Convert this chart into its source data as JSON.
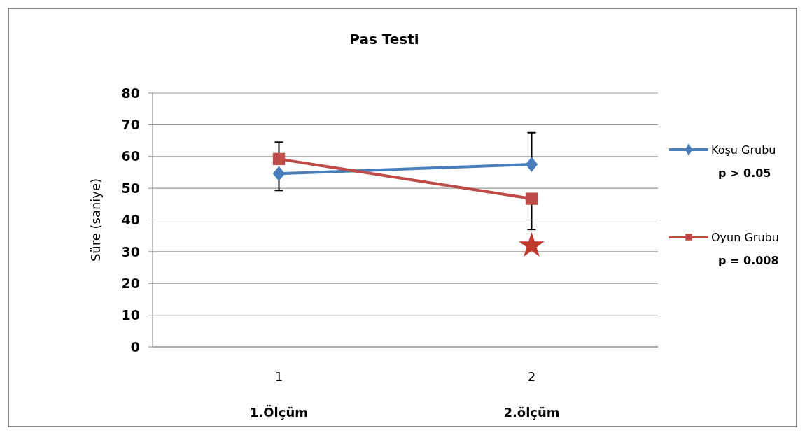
{
  "chart_data": {
    "type": "line",
    "title": "Pas Testi",
    "ylabel": "Süre (saniye)",
    "categories": [
      "1",
      "2"
    ],
    "series": [
      {
        "name": "Koşu Grubu",
        "color": "#4a7ebb",
        "marker": "diamond",
        "values": [
          54.6,
          57.5
        ],
        "errors": [
          [
            49.3,
            54.6
          ],
          [
            57.5,
            67.5
          ]
        ]
      },
      {
        "name": "Oyun Grubu",
        "color": "#be4b48",
        "marker": "square",
        "values": [
          59.2,
          46.7
        ],
        "errors": [
          [
            59.2,
            64.5
          ],
          [
            37.0,
            46.7
          ]
        ]
      },
      {
        "type": "scatter",
        "color": "#c0392b",
        "marker": "star",
        "x": [
          "2"
        ],
        "values": [
          31.9
        ]
      }
    ],
    "ylim": [
      0,
      80
    ],
    "yticks": [
      0,
      10,
      20,
      30,
      40,
      50,
      60,
      70,
      80
    ],
    "grid": "y",
    "legend": "right",
    "annotations": [
      "p > 0.05",
      "p = 0.008",
      "1.Ölçüm",
      "2.ölçüm"
    ]
  }
}
